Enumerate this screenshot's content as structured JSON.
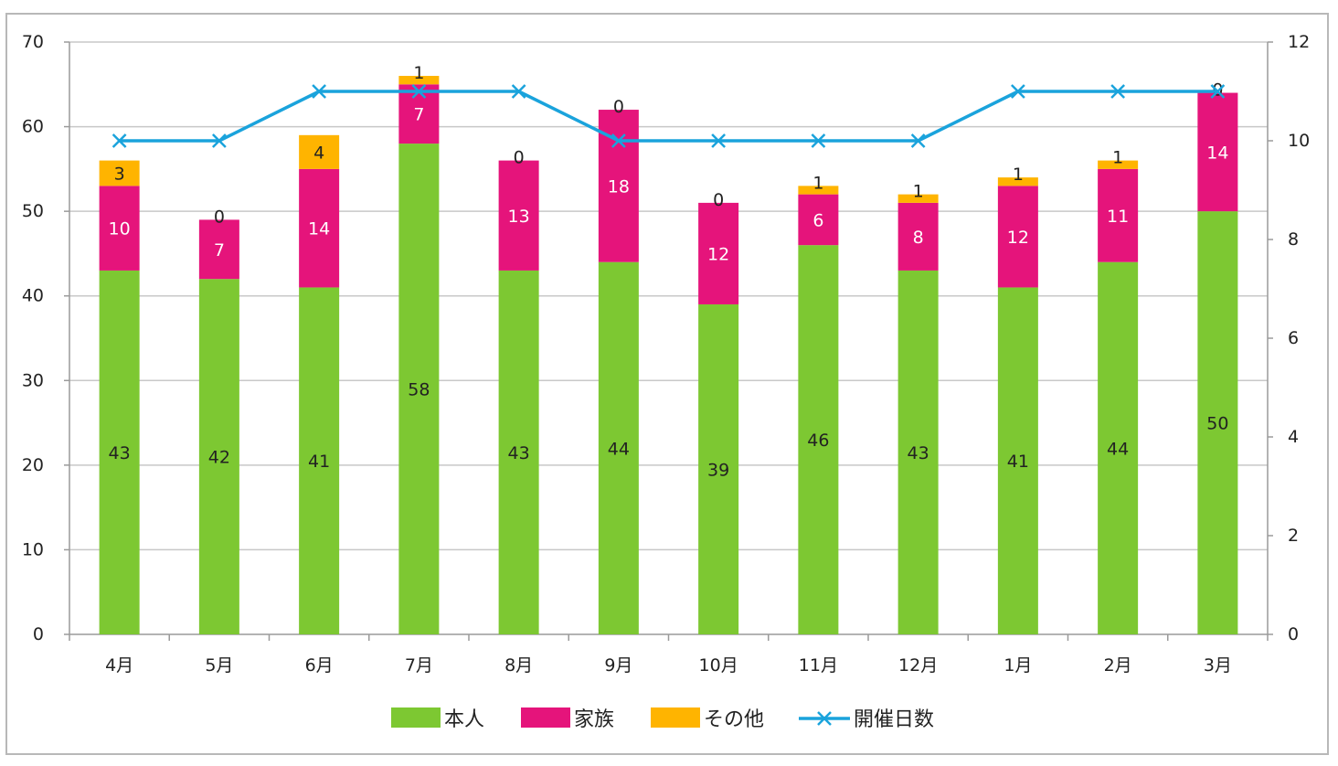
{
  "chart_data": {
    "type": "bar",
    "stacked": true,
    "categories": [
      "4月",
      "5月",
      "6月",
      "7月",
      "8月",
      "9月",
      "10月",
      "11月",
      "12月",
      "1月",
      "2月",
      "3月"
    ],
    "series": [
      {
        "name": "本人",
        "type": "bar",
        "axis": "left",
        "color": "#7dc832",
        "values": [
          43,
          42,
          41,
          58,
          43,
          44,
          39,
          46,
          43,
          41,
          44,
          50
        ]
      },
      {
        "name": "家族",
        "type": "bar",
        "axis": "left",
        "color": "#e5147b",
        "values": [
          10,
          7,
          14,
          7,
          13,
          18,
          12,
          6,
          8,
          12,
          11,
          14
        ]
      },
      {
        "name": "その他",
        "type": "bar",
        "axis": "left",
        "color": "#ffb400",
        "values": [
          3,
          0,
          4,
          1,
          0,
          0,
          0,
          1,
          1,
          1,
          1,
          0
        ]
      },
      {
        "name": "開催日数",
        "type": "line",
        "axis": "right",
        "color": "#1aa3dc",
        "marker": "x",
        "values": [
          10,
          10,
          11,
          11,
          11,
          10,
          10,
          10,
          10,
          11,
          11,
          11
        ]
      }
    ],
    "y_left": {
      "min": 0,
      "max": 70,
      "step": 10,
      "ticks": [
        "0",
        "10",
        "20",
        "30",
        "40",
        "50",
        "60",
        "70"
      ]
    },
    "y_right": {
      "min": 0,
      "max": 12,
      "step": 2,
      "ticks": [
        "0",
        "2",
        "4",
        "6",
        "8",
        "10",
        "12"
      ]
    },
    "title": "",
    "xlabel": "",
    "ylabel": "",
    "grid": true,
    "legend_position": "bottom",
    "label_colors": {
      "本人": "#222222",
      "家族": "#ffffff",
      "その他": "#222222"
    }
  }
}
